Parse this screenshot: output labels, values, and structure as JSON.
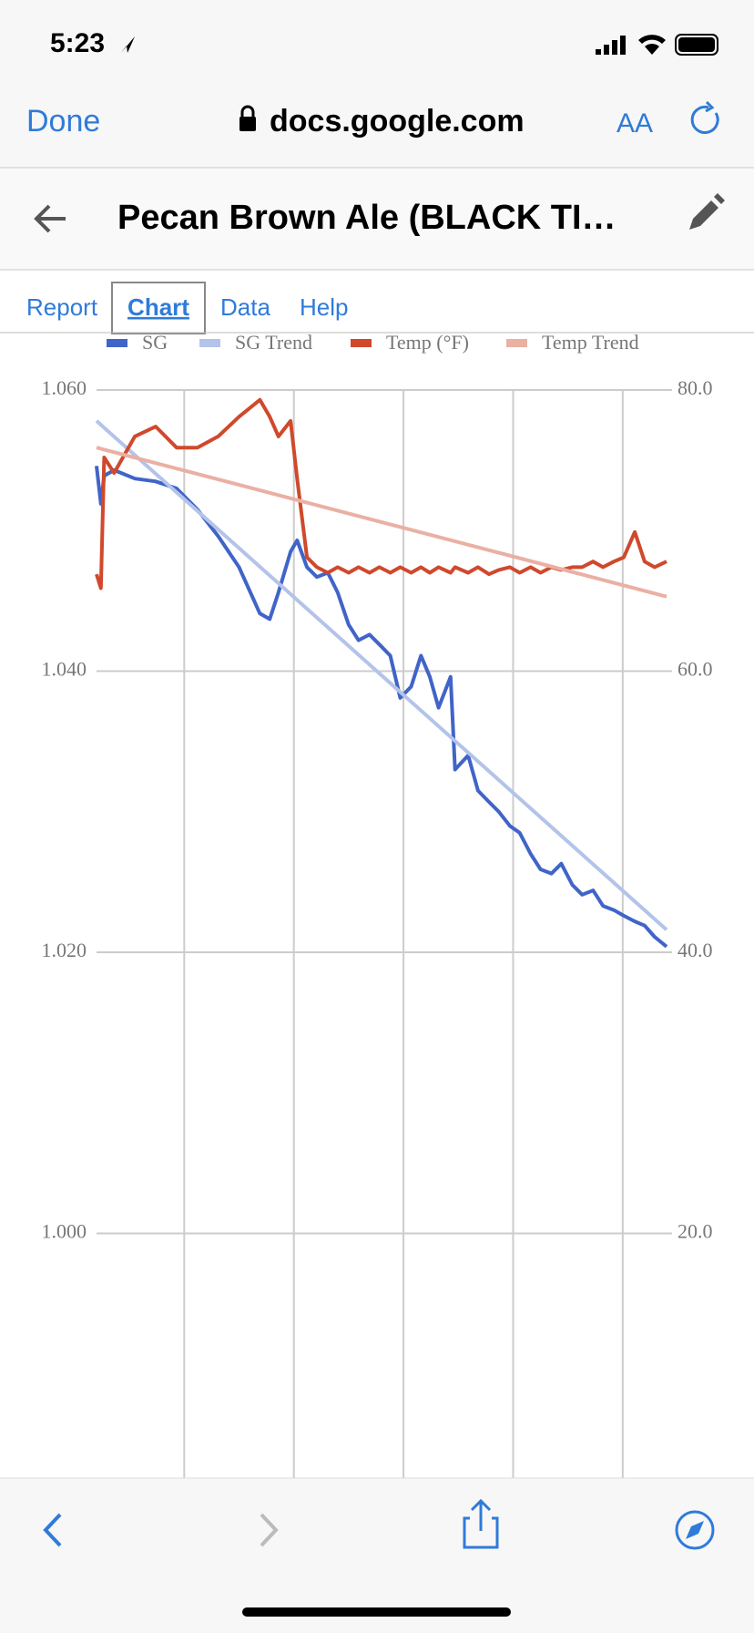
{
  "status_bar": {
    "time": "5:23"
  },
  "address_bar": {
    "done": "Done",
    "url": "docs.google.com",
    "text_size": "AA"
  },
  "header": {
    "title": "Pecan Brown Ale (BLACK TI…"
  },
  "tabs": [
    "Report",
    "Chart",
    "Data",
    "Help"
  ],
  "chart_data": {
    "type": "line",
    "xlim": [
      0,
      5.2
    ],
    "xticks": [
      0.8,
      1.8,
      2.8,
      3.8,
      4.8
    ],
    "ylim": [
      0.98,
      1.06
    ],
    "yticks": [
      {
        "value": 1.0,
        "label": "1.000"
      },
      {
        "value": 1.02,
        "label": "1.020"
      },
      {
        "value": 1.04,
        "label": "1.040"
      },
      {
        "value": 1.06,
        "label": "1.060"
      }
    ],
    "y2lim": [
      0,
      80
    ],
    "y2ticks": [
      {
        "value": 20,
        "label": "20.0"
      },
      {
        "value": 40,
        "label": "40.0"
      },
      {
        "value": 60,
        "label": "60.0"
      },
      {
        "value": 80,
        "label": "80.0"
      }
    ],
    "grid": true,
    "legend": "top",
    "series": [
      {
        "name": "SG",
        "color": "#4064c8",
        "x": [
          0.0,
          0.04,
          0.07,
          0.16,
          0.35,
          0.54,
          0.73,
          0.92,
          1.11,
          1.3,
          1.49,
          1.58,
          1.66,
          1.77,
          1.83,
          1.92,
          2.01,
          2.11,
          2.2,
          2.3,
          2.39,
          2.49,
          2.58,
          2.68,
          2.77,
          2.87,
          2.96,
          3.04,
          3.12,
          3.23,
          3.27,
          3.39,
          3.48,
          3.58,
          3.67,
          3.77,
          3.86,
          3.96,
          4.05,
          4.15,
          4.24,
          4.34,
          4.43,
          4.53,
          4.62,
          4.72,
          4.81,
          4.91,
          5.0,
          5.09,
          5.2
        ],
        "values": [
          1.0546,
          1.0519,
          1.0539,
          1.0543,
          1.0537,
          1.0535,
          1.053,
          1.0515,
          1.0496,
          1.0474,
          1.0441,
          1.0437,
          1.0456,
          1.0485,
          1.0493,
          1.0474,
          1.0467,
          1.047,
          1.0456,
          1.0433,
          1.0422,
          1.0426,
          1.0419,
          1.0411,
          1.0381,
          1.0389,
          1.0411,
          1.0396,
          1.0374,
          1.0396,
          1.033,
          1.034,
          1.0315,
          1.0307,
          1.03,
          1.029,
          1.0285,
          1.027,
          1.0259,
          1.0256,
          1.0263,
          1.0248,
          1.0241,
          1.0244,
          1.0233,
          1.023,
          1.0226,
          1.0222,
          1.0219,
          1.0211,
          1.0204
        ]
      },
      {
        "name": "SG Trend",
        "color": "#b3c3ea",
        "x": [
          0,
          5.2
        ],
        "values": [
          1.0578,
          1.0216
        ]
      },
      {
        "name": "Temp (°F)",
        "color": "#d0492c",
        "axis": "y2",
        "x": [
          0.0,
          0.04,
          0.07,
          0.16,
          0.35,
          0.54,
          0.73,
          0.92,
          1.11,
          1.3,
          1.49,
          1.58,
          1.66,
          1.77,
          1.83,
          1.92,
          2.01,
          2.11,
          2.2,
          2.3,
          2.39,
          2.49,
          2.58,
          2.68,
          2.77,
          2.87,
          2.96,
          3.04,
          3.12,
          3.23,
          3.27,
          3.39,
          3.48,
          3.58,
          3.67,
          3.77,
          3.86,
          3.96,
          4.05,
          4.15,
          4.24,
          4.34,
          4.43,
          4.53,
          4.62,
          4.72,
          4.81,
          4.91,
          5.0,
          5.09,
          5.2
        ],
        "values": [
          66.9,
          65.9,
          75.2,
          74.1,
          76.7,
          77.4,
          75.9,
          75.9,
          76.7,
          78.1,
          79.3,
          78.1,
          76.7,
          77.8,
          73.7,
          68.1,
          67.4,
          67.0,
          67.4,
          67.0,
          67.4,
          67.0,
          67.4,
          67.0,
          67.4,
          67.0,
          67.4,
          67.0,
          67.4,
          67.0,
          67.4,
          67.0,
          67.4,
          66.9,
          67.2,
          67.4,
          67.0,
          67.4,
          67.0,
          67.4,
          67.2,
          67.4,
          67.4,
          67.8,
          67.4,
          67.8,
          68.1,
          69.9,
          67.8,
          67.4,
          67.8
        ]
      },
      {
        "name": "Temp Trend",
        "color": "#eab0a3",
        "axis": "y2",
        "x": [
          0,
          5.2
        ],
        "values": [
          75.9,
          65.3
        ]
      }
    ]
  }
}
